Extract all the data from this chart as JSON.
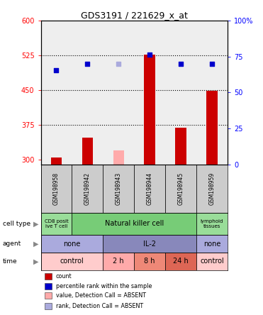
{
  "title": "GDS3191 / 221629_x_at",
  "samples": [
    "GSM198958",
    "GSM198942",
    "GSM198943",
    "GSM198944",
    "GSM198945",
    "GSM198959"
  ],
  "bar_values": [
    305,
    348,
    null,
    527,
    370,
    448
  ],
  "bar_absent": [
    null,
    null,
    320,
    null,
    null,
    null
  ],
  "bar_colors": [
    "#cc0000",
    "#cc0000",
    null,
    "#cc0000",
    "#cc0000",
    "#cc0000"
  ],
  "bar_absent_color": "#ffaaaa",
  "dot_values": [
    493,
    507,
    null,
    527,
    507,
    507
  ],
  "dot_absent": [
    null,
    null,
    507,
    null,
    null,
    null
  ],
  "dot_color": "#0000cc",
  "dot_absent_color": "#aaaadd",
  "ylim_left": [
    290,
    600
  ],
  "ylim_right": [
    0,
    100
  ],
  "yticks_left": [
    300,
    375,
    450,
    525,
    600
  ],
  "yticks_right": [
    0,
    25,
    50,
    75,
    100
  ],
  "ytick_labels_left": [
    "300",
    "375",
    "450",
    "525",
    "600"
  ],
  "ytick_labels_right": [
    "0",
    "25",
    "50",
    "75",
    "100%"
  ],
  "hlines": [
    375,
    450,
    525
  ],
  "cell_type_groups": [
    {
      "label": "CD8 posit\nive T cell",
      "start": 0,
      "end": 1,
      "color": "#99dd99"
    },
    {
      "label": "Natural killer cell",
      "start": 1,
      "end": 5,
      "color": "#77cc77"
    },
    {
      "label": "lymphoid\ntissues",
      "start": 5,
      "end": 6,
      "color": "#99dd99"
    }
  ],
  "agent_groups": [
    {
      "label": "none",
      "start": 0,
      "end": 2,
      "color": "#aaaadd"
    },
    {
      "label": "IL-2",
      "start": 2,
      "end": 5,
      "color": "#8888bb"
    },
    {
      "label": "none",
      "start": 5,
      "end": 6,
      "color": "#aaaadd"
    }
  ],
  "time_groups": [
    {
      "label": "control",
      "start": 0,
      "end": 2,
      "color": "#ffcccc"
    },
    {
      "label": "2 h",
      "start": 2,
      "end": 3,
      "color": "#ffaaaa"
    },
    {
      "label": "8 h",
      "start": 3,
      "end": 4,
      "color": "#ee8877"
    },
    {
      "label": "24 h",
      "start": 4,
      "end": 5,
      "color": "#dd6655"
    },
    {
      "label": "control",
      "start": 5,
      "end": 6,
      "color": "#ffcccc"
    }
  ],
  "row_labels": [
    "cell type",
    "agent",
    "time"
  ],
  "legend_items": [
    {
      "color": "#cc0000",
      "label": "count"
    },
    {
      "color": "#0000cc",
      "label": "percentile rank within the sample"
    },
    {
      "color": "#ffaaaa",
      "label": "value, Detection Call = ABSENT"
    },
    {
      "color": "#aaaadd",
      "label": "rank, Detection Call = ABSENT"
    }
  ],
  "bg_color": "#ffffff",
  "plot_bg": "#eeeeee",
  "xtick_bg": "#cccccc",
  "grid_color": "#000000",
  "bar_width": 0.35,
  "dot_size": 16
}
